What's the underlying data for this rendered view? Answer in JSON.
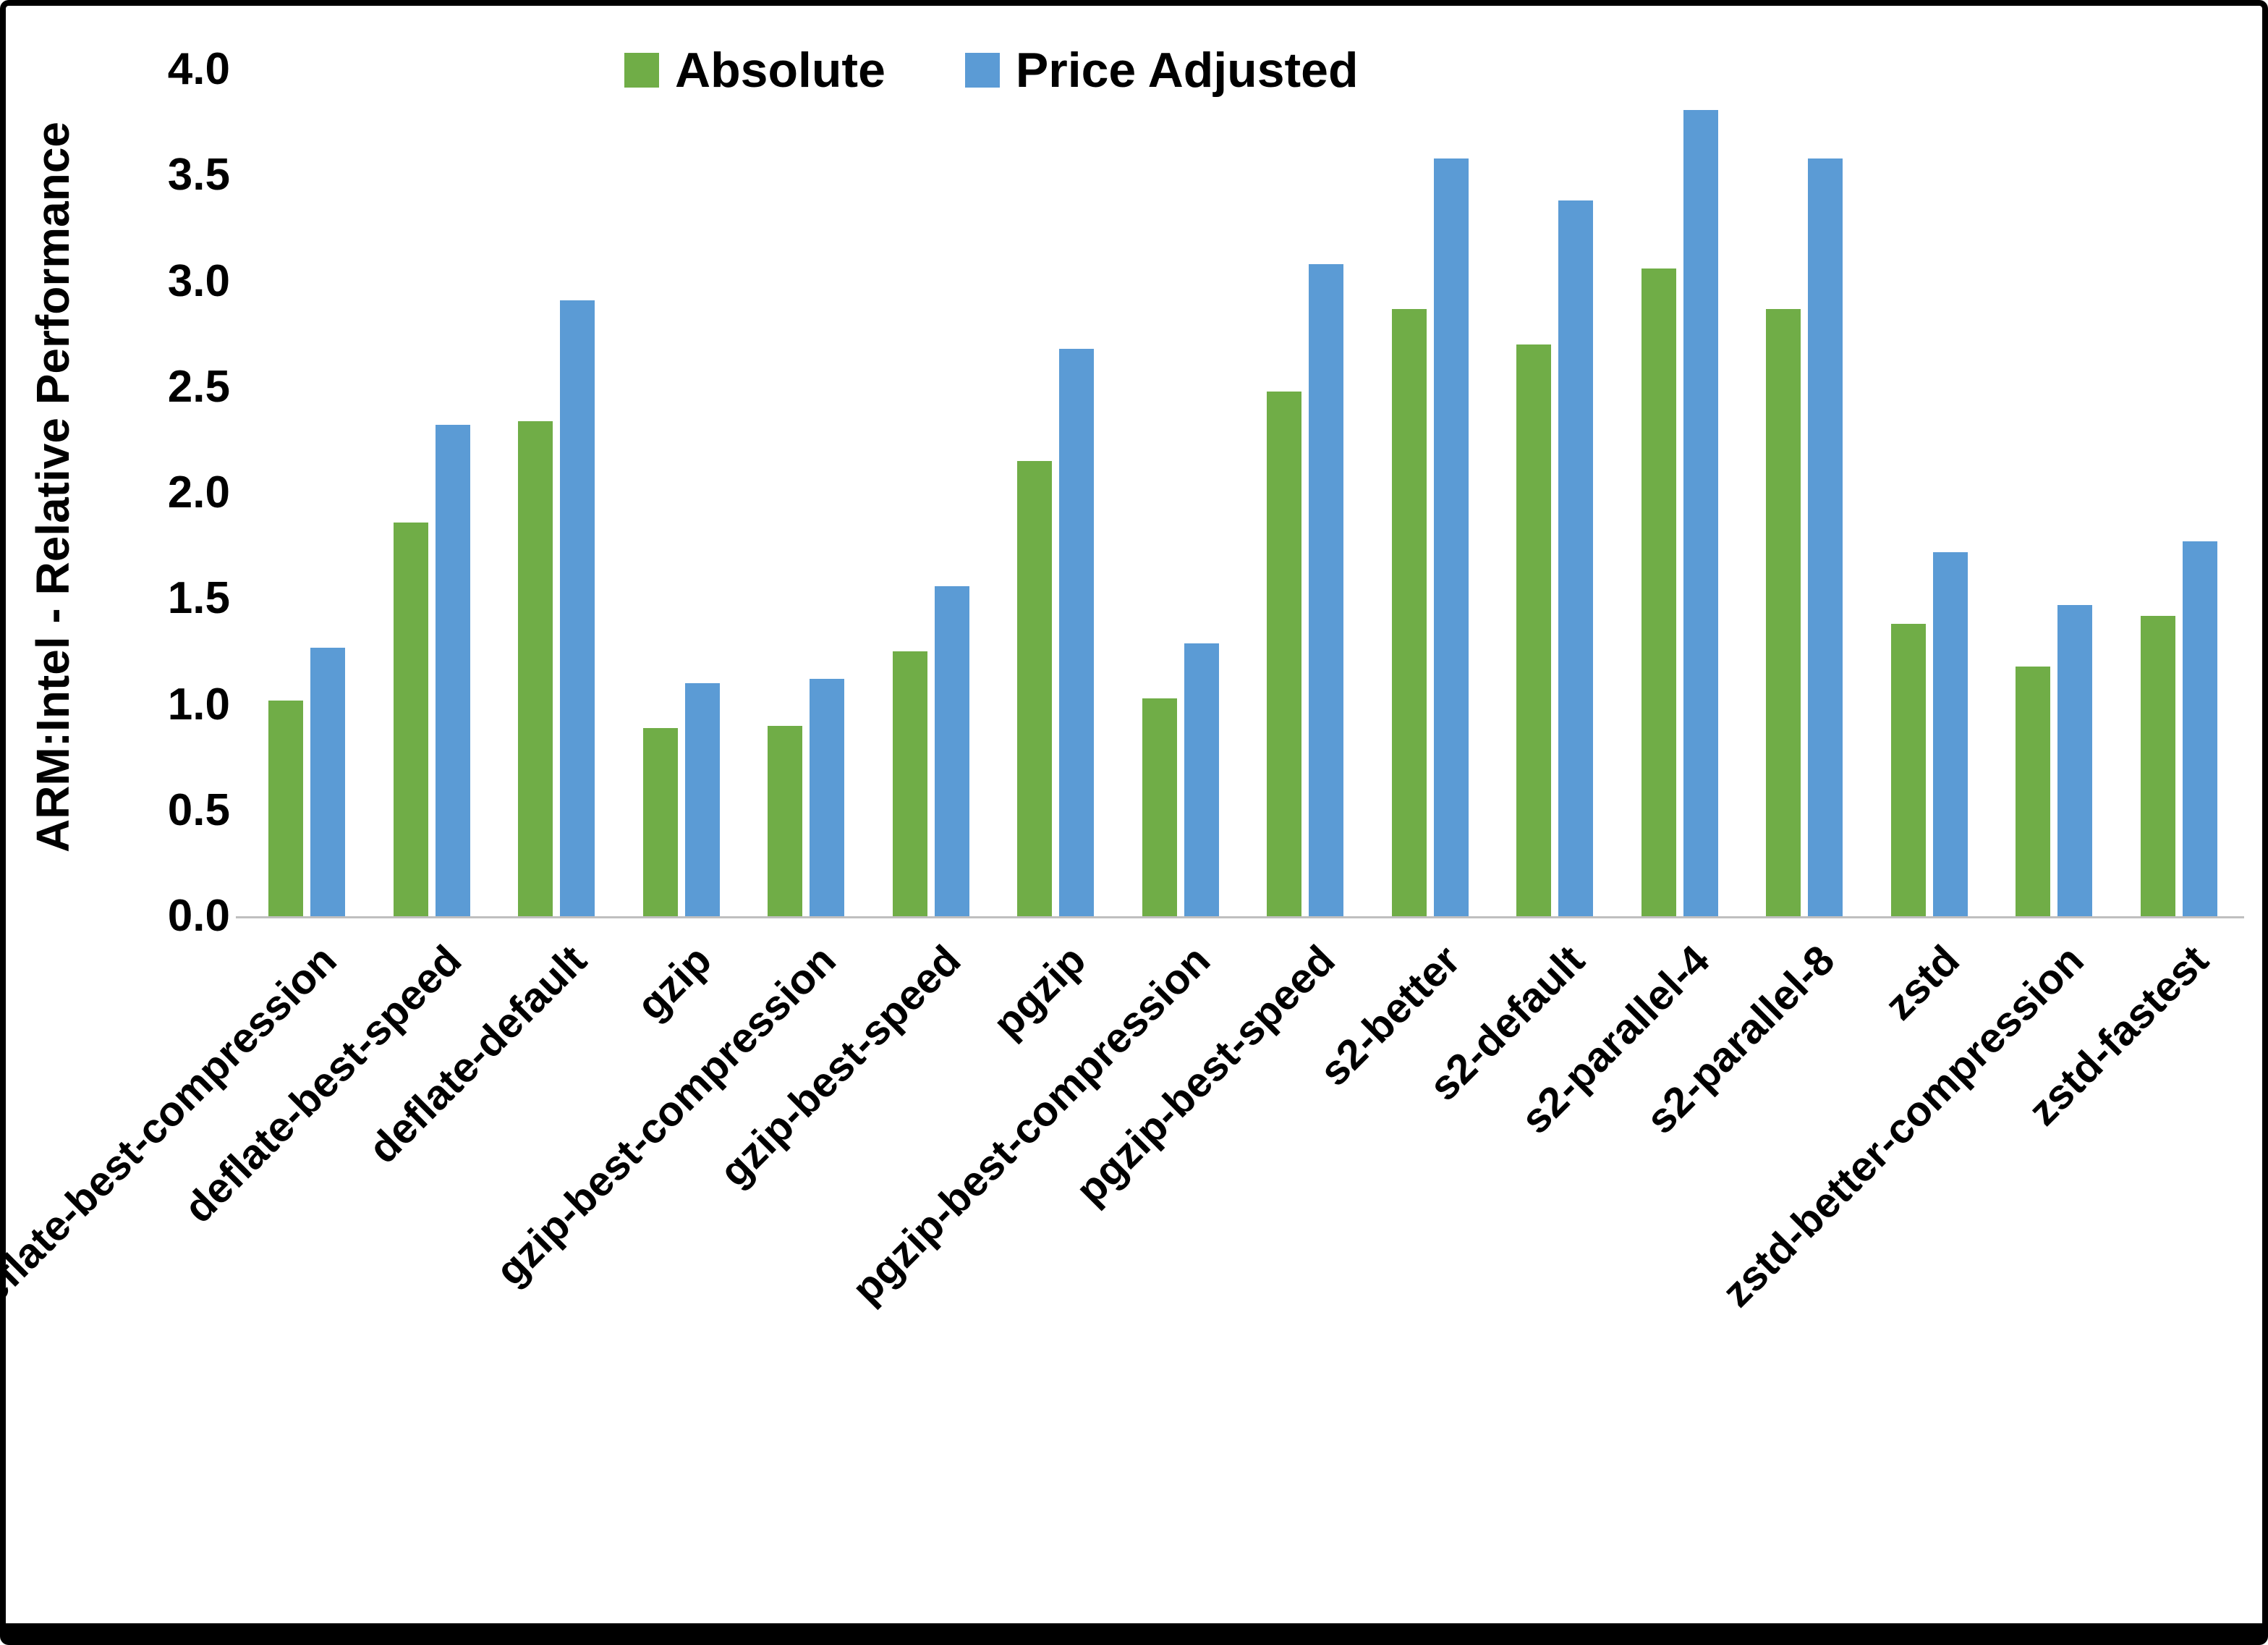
{
  "chart_data": {
    "type": "bar",
    "title": "",
    "xlabel": "",
    "ylabel": "ARM:Intel - Relative Performance",
    "ylim": [
      0,
      4
    ],
    "ytick_step": 0.5,
    "grid": false,
    "legend_position": "top-center",
    "categories": [
      "deflate-best-compression",
      "deflate-best-speed",
      "deflate-default",
      "gzip",
      "gzip-best-compression",
      "gzip-best-speed",
      "pgzip",
      "pgzip-best-compression",
      "pgzip-best-speed",
      "s2-better",
      "s2-default",
      "s2-parallel-4",
      "s2-parallel-8",
      "zstd",
      "zstd-better-compression",
      "zstd-fastest"
    ],
    "series": [
      {
        "name": "Absolute",
        "color": "#70AD47",
        "values": [
          1.02,
          1.86,
          2.34,
          0.89,
          0.9,
          1.25,
          2.15,
          1.03,
          2.48,
          2.87,
          2.7,
          3.06,
          2.87,
          1.38,
          1.18,
          1.42
        ]
      },
      {
        "name": "Price Adjusted",
        "color": "#5B9BD5",
        "values": [
          1.27,
          2.32,
          2.91,
          1.1,
          1.12,
          1.56,
          2.68,
          1.29,
          3.08,
          3.58,
          3.38,
          3.81,
          3.58,
          1.72,
          1.47,
          1.77
        ]
      }
    ],
    "axis_color": "#bfbfbf",
    "text_color": "#000000"
  }
}
